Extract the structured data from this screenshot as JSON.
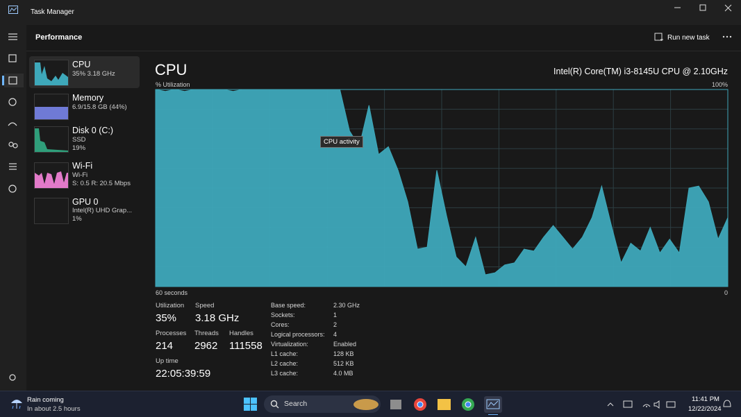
{
  "window": {
    "title": "Task Manager"
  },
  "header": {
    "title": "Performance",
    "run_new_task": "Run new task"
  },
  "devices": [
    {
      "name": "CPU",
      "details": [
        "35%  3.18 GHz"
      ]
    },
    {
      "name": "Memory",
      "details": [
        "6.9/15.8 GB (44%)"
      ]
    },
    {
      "name": "Disk 0 (C:)",
      "details": [
        "SSD",
        "19%"
      ]
    },
    {
      "name": "Wi-Fi",
      "details": [
        "Wi-Fi",
        "S: 0.5  R: 20.5 Mbps"
      ]
    },
    {
      "name": "GPU 0",
      "details": [
        "Intel(R) UHD Grap...",
        "1%"
      ]
    }
  ],
  "panel": {
    "title": "CPU",
    "processor": "Intel(R) Core(TM) i3-8145U CPU @ 2.10GHz",
    "tooltip": "CPU activity",
    "stats": [
      {
        "label": "Utilization",
        "value": "35%"
      },
      {
        "label": "Speed",
        "value": "3.18 GHz"
      },
      {
        "label": "Processes",
        "value": "214"
      },
      {
        "label": "Threads",
        "value": "2962"
      },
      {
        "label": "Handles",
        "value": "111558"
      },
      {
        "label": "Up time",
        "value": "22:05:39:59"
      }
    ],
    "specs": [
      {
        "label": "Base speed:",
        "value": "2.30 GHz"
      },
      {
        "label": "Sockets:",
        "value": "1"
      },
      {
        "label": "Cores:",
        "value": "2"
      },
      {
        "label": "Logical processors:",
        "value": "4"
      },
      {
        "label": "Virtualization:",
        "value": "Enabled"
      },
      {
        "label": "L1 cache:",
        "value": "128 KB"
      },
      {
        "label": "L2 cache:",
        "value": "512 KB"
      },
      {
        "label": "L3 cache:",
        "value": "4.0 MB"
      }
    ]
  },
  "chart_data": {
    "type": "area",
    "ylabel": "% Utilization",
    "x_start_label": "60 seconds",
    "x_end_label": "0",
    "ylim": [
      0,
      100
    ],
    "yticks": [
      {
        "value": 100,
        "label": "100%"
      }
    ],
    "color": "#3ea8ba",
    "values": [
      100,
      99,
      100,
      99,
      100,
      100,
      100,
      100,
      99,
      100,
      100,
      100,
      100,
      100,
      100,
      100,
      100,
      100,
      100,
      100,
      79,
      71,
      92,
      67,
      71,
      59,
      43,
      19,
      20,
      59,
      36,
      15,
      10,
      25,
      6,
      7,
      11,
      12,
      19,
      18,
      25,
      31,
      25,
      19,
      25,
      35,
      51,
      31,
      12,
      22,
      18,
      30,
      17,
      24,
      17,
      50,
      51,
      43,
      24,
      35
    ]
  },
  "taskbar": {
    "weather_title": "Rain coming",
    "weather_detail": "In about 2.5 hours",
    "search": "Search",
    "time": "11:41 PM",
    "date": "12/22/2024"
  }
}
